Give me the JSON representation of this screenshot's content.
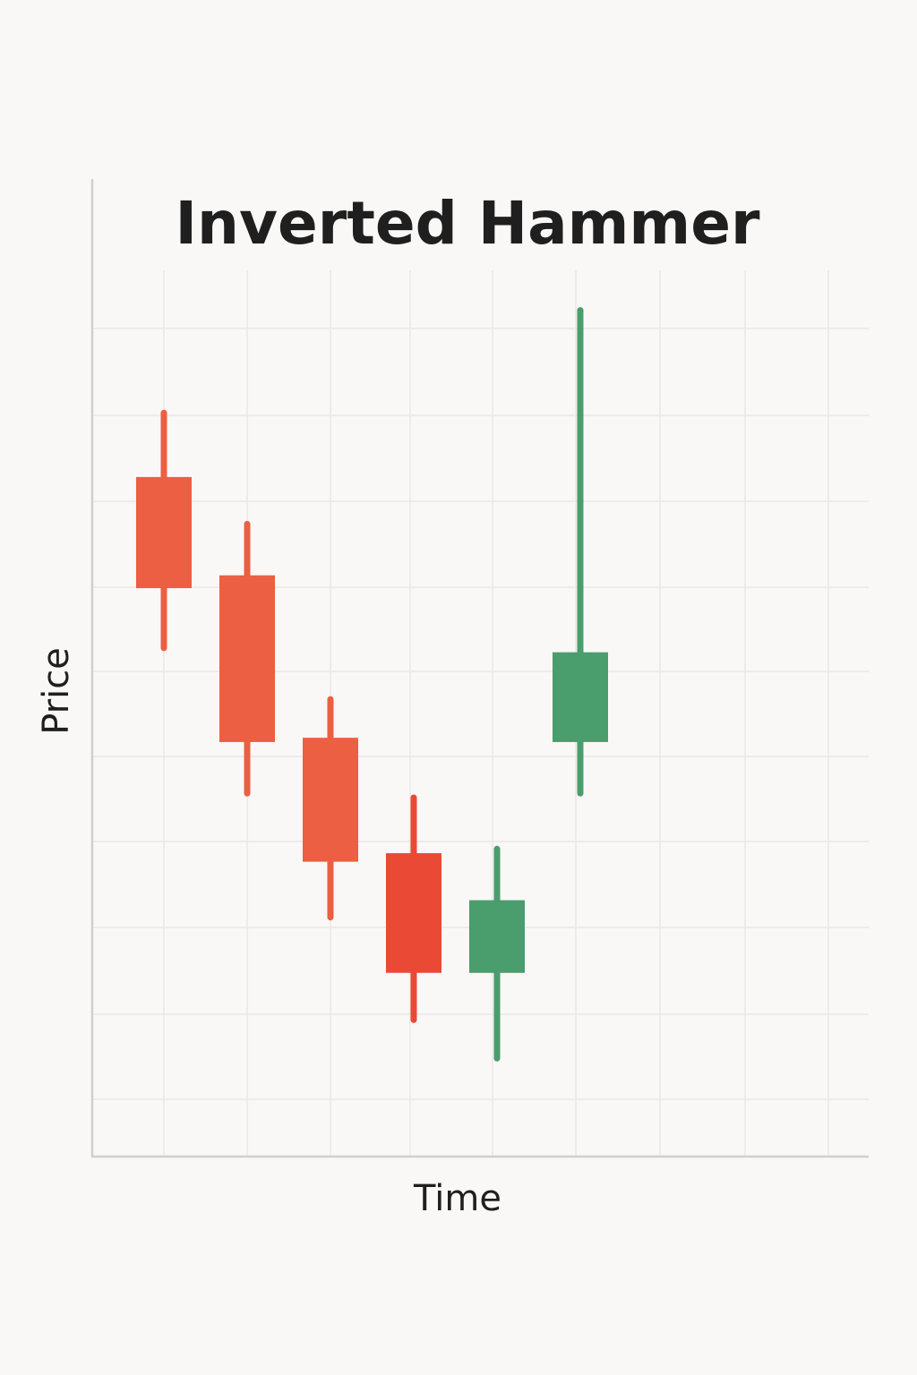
{
  "chart_data": {
    "type": "candlestick",
    "title": "Inverted Hammer",
    "xlabel": "Time",
    "ylabel": "Price",
    "grid": true,
    "ylim": [
      0,
      10
    ],
    "xlim": [
      0,
      9
    ],
    "colors": {
      "bearish": "#ec5f42",
      "bearish_dark": "#ea4a35",
      "bullish": "#4a9d6c",
      "grid": "#e8e8e6",
      "axis": "#cfcfcf",
      "background": "#f9f8f6"
    },
    "candles": [
      {
        "x": 1,
        "direction": "down",
        "open": 7.75,
        "close": 6.45,
        "high": 8.5,
        "low": 5.75
      },
      {
        "x": 2,
        "direction": "down",
        "open": 6.6,
        "close": 4.65,
        "high": 7.2,
        "low": 4.05
      },
      {
        "x": 3,
        "direction": "down",
        "open": 4.7,
        "close": 3.25,
        "high": 5.15,
        "low": 2.6
      },
      {
        "x": 4,
        "direction": "down",
        "open": 3.35,
        "close": 1.95,
        "high": 4.0,
        "low": 1.4
      },
      {
        "x": 5,
        "direction": "up",
        "open": 1.95,
        "close": 2.8,
        "high": 3.4,
        "low": 0.95
      },
      {
        "x": 6,
        "direction": "up",
        "open": 4.65,
        "close": 5.7,
        "high": 9.7,
        "low": 4.05
      }
    ]
  }
}
